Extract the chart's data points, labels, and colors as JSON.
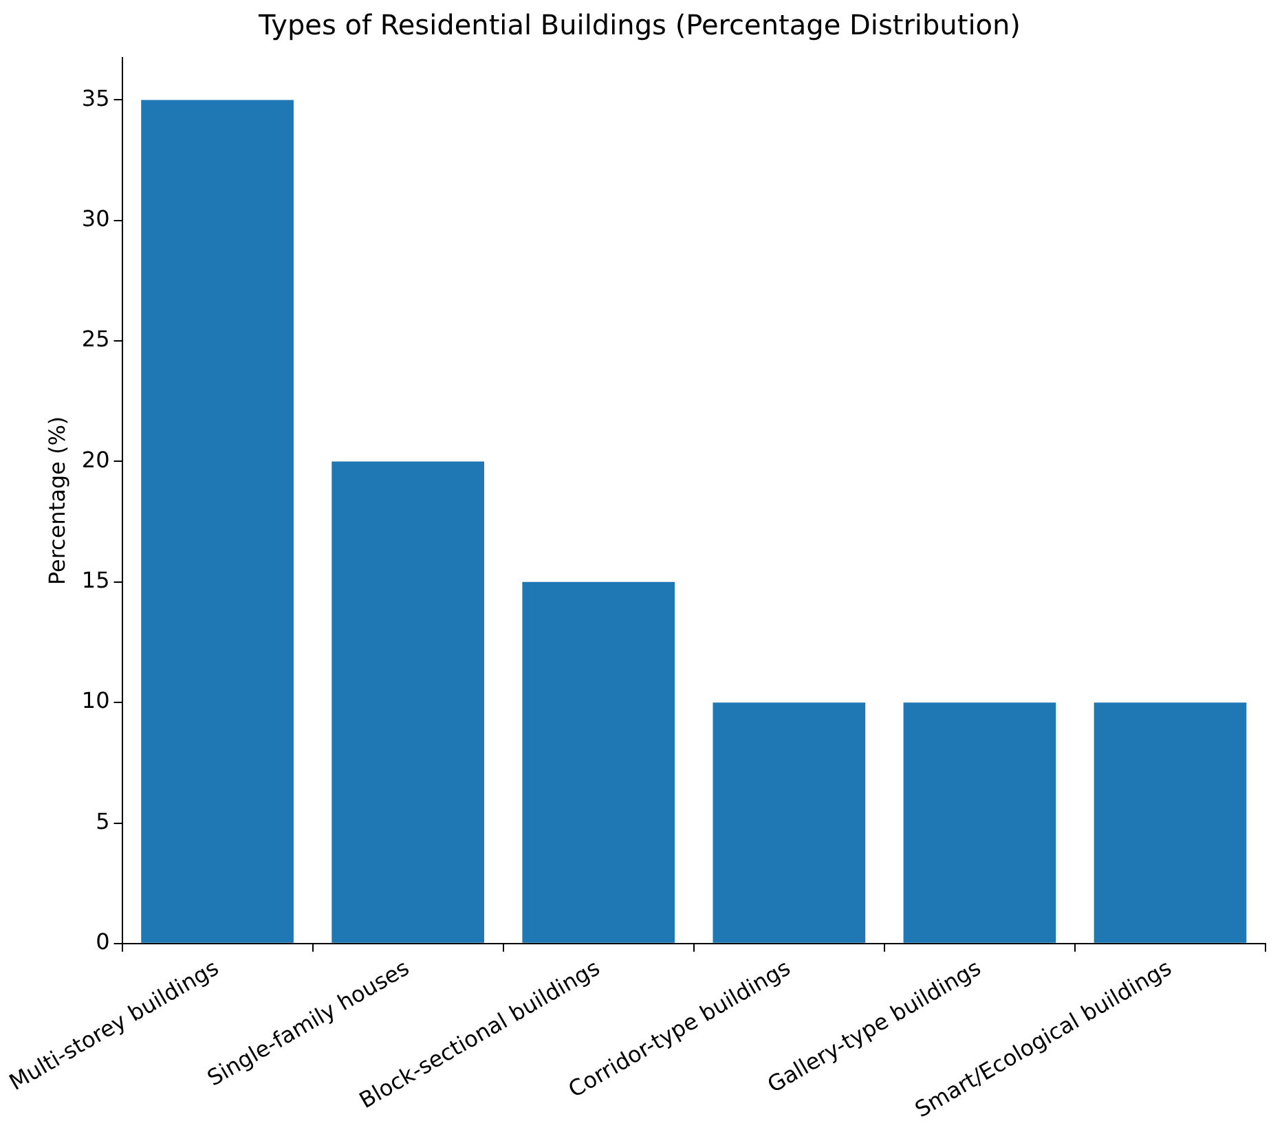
{
  "chart_data": {
    "type": "bar",
    "title": "Types of Residential Buildings (Percentage Distribution)",
    "ylabel": "Percentage (%)",
    "categories": [
      "Multi-storey buildings",
      "Single-family houses",
      "Block-sectional buildings",
      "Corridor-type buildings",
      "Gallery-type buildings",
      "Smart/Ecological buildings"
    ],
    "values": [
      35,
      20,
      15,
      10,
      10,
      10
    ],
    "color": "#1f77b4",
    "ylim": [
      0,
      36.75
    ],
    "yticks": [
      0,
      5,
      10,
      15,
      20,
      25,
      30,
      35
    ],
    "grid": false,
    "legend": false
  }
}
